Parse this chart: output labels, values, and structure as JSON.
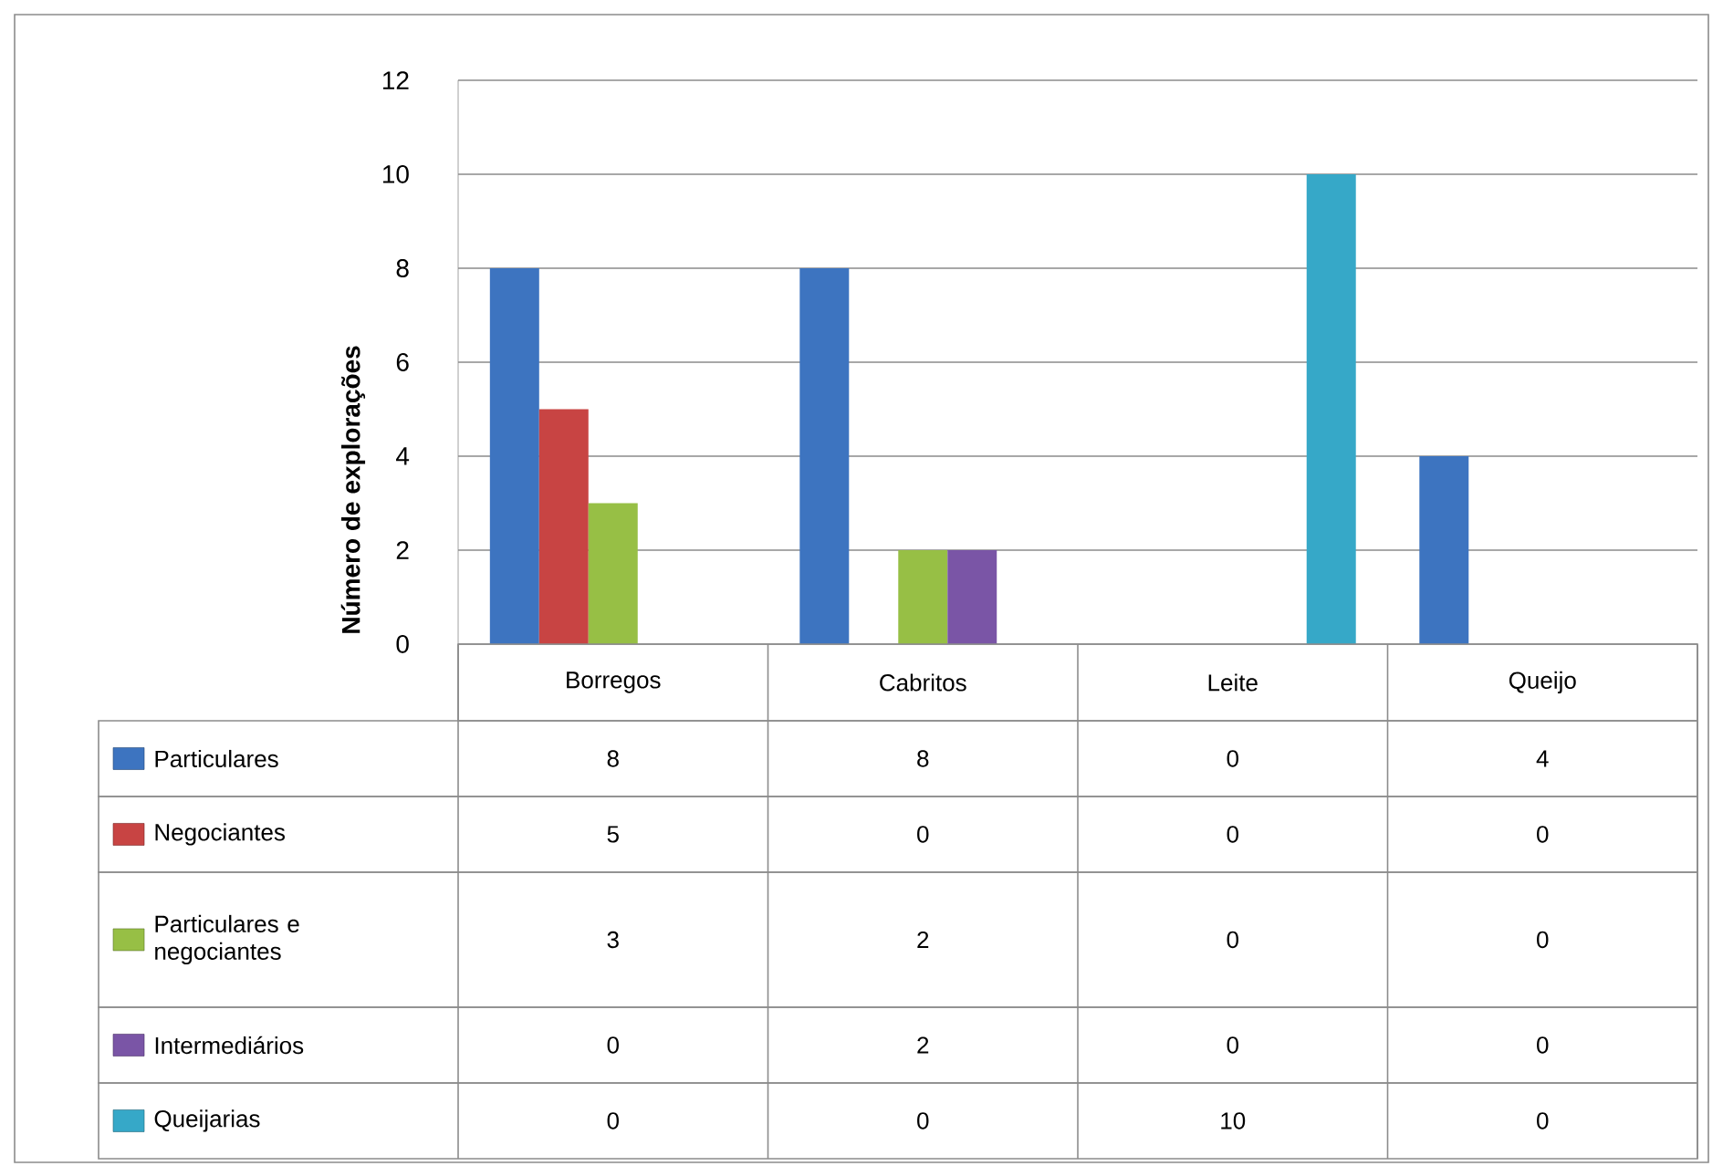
{
  "chart_data": {
    "type": "bar",
    "ylabel": "Número de explorações",
    "categories": [
      "Borregos",
      "Cabritos",
      "Leite",
      "Queijo"
    ],
    "series": [
      {
        "name": "Particulares",
        "color": "#3d74c0",
        "values": [
          8,
          8,
          0,
          4
        ]
      },
      {
        "name": "Negociantes",
        "color": "#c84443",
        "values": [
          5,
          0,
          0,
          0
        ]
      },
      {
        "name": "Particulares e negociantes",
        "color": "#97bf45",
        "values": [
          3,
          2,
          0,
          0
        ]
      },
      {
        "name": "Intermediários",
        "color": "#7a55a6",
        "values": [
          0,
          2,
          0,
          0
        ]
      },
      {
        "name": "Queijarias",
        "color": "#36a8c8",
        "values": [
          0,
          0,
          10,
          0
        ]
      }
    ],
    "ylim": [
      0,
      12
    ],
    "yticks": [
      0,
      2,
      4,
      6,
      8,
      10,
      12
    ],
    "grid": "y",
    "legend": "bottom",
    "data_labels": true
  }
}
